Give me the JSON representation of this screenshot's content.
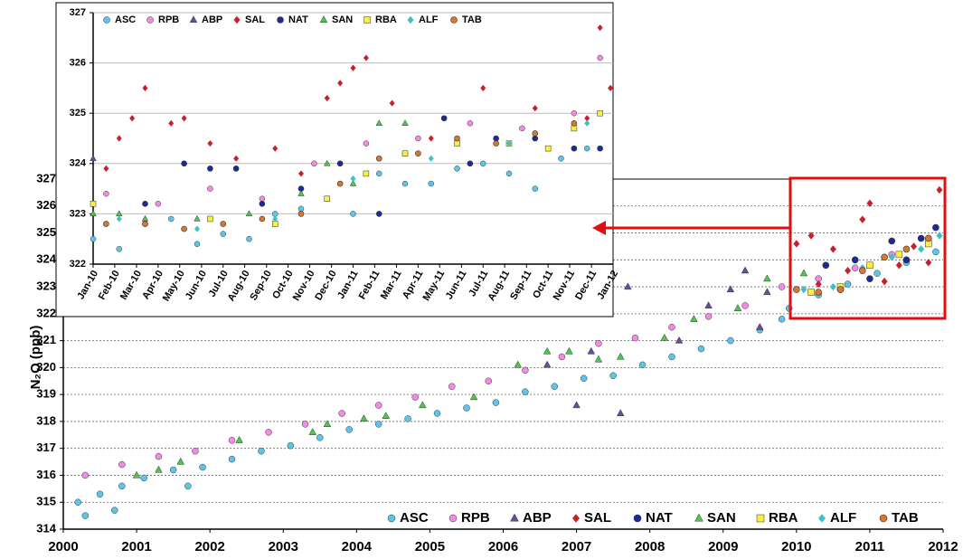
{
  "chart_data": [
    {
      "type": "scatter",
      "y_label": "N₂O (ppb)",
      "legend": "lower right",
      "grid": true,
      "xlim": [
        2000,
        2012
      ],
      "xticks": [
        2000,
        2001,
        2002,
        2003,
        2004,
        2005,
        2006,
        2007,
        2008,
        2009,
        2010,
        2011,
        2012
      ],
      "ylim": [
        314,
        327
      ],
      "yticks": [
        314,
        315,
        316,
        317,
        318,
        319,
        320,
        321,
        322,
        323,
        324,
        325,
        326,
        327
      ],
      "series": [
        {
          "name": "ASC",
          "color": "#5cc6e8",
          "marker": "circle",
          "x": [
            2000.2,
            2000.3,
            2000.5,
            2000.7,
            2000.8,
            2001.1,
            2001.5,
            2001.7,
            2001.9,
            2002.3,
            2002.7,
            2003.1,
            2003.5,
            2003.9,
            2004.3,
            2004.7,
            2005.1,
            2005.5,
            2005.9,
            2006.3,
            2006.7,
            2007.1,
            2007.5,
            2007.9,
            2008.3,
            2008.7,
            2009.1,
            2009.5,
            2009.8,
            2009.9,
            2010.3,
            2010.7,
            2011.1,
            2011.5,
            2011.9
          ],
          "values": [
            315.0,
            314.5,
            315.3,
            314.7,
            315.6,
            315.9,
            316.2,
            315.6,
            316.3,
            316.6,
            316.9,
            317.1,
            317.4,
            317.7,
            317.9,
            318.1,
            318.3,
            318.5,
            318.7,
            319.1,
            319.3,
            319.6,
            319.7,
            320.1,
            320.4,
            320.7,
            321.0,
            321.4,
            321.8,
            322.2,
            322.7,
            323.1,
            323.5,
            323.9,
            324.3
          ]
        },
        {
          "name": "RPB",
          "color": "#f28ae6",
          "marker": "circle",
          "x": [
            2000.3,
            2000.8,
            2001.3,
            2001.8,
            2002.3,
            2002.8,
            2003.3,
            2003.8,
            2004.3,
            2004.8,
            2005.3,
            2005.8,
            2006.3,
            2006.8,
            2007.3,
            2007.8,
            2008.3,
            2008.8,
            2009.3,
            2009.8,
            2010.3,
            2010.8,
            2011.3,
            2011.8
          ],
          "values": [
            316.0,
            316.4,
            316.7,
            316.9,
            317.3,
            317.6,
            317.9,
            318.3,
            318.6,
            318.9,
            319.3,
            319.5,
            319.9,
            320.4,
            320.9,
            321.1,
            321.5,
            321.9,
            322.3,
            323.0,
            323.3,
            323.7,
            324.2,
            324.8
          ]
        },
        {
          "name": "ABP",
          "color": "#6a4c9c",
          "marker": "triangle",
          "x": [
            2006.6,
            2006.9,
            2007.0,
            2007.2,
            2007.4,
            2007.6,
            2007.7,
            2008.4,
            2008.8,
            2009.1,
            2009.3,
            2009.5,
            2009.6
          ],
          "values": [
            320.1,
            322.5,
            318.6,
            320.6,
            322.2,
            318.3,
            323.0,
            321.0,
            322.3,
            322.9,
            323.6,
            321.5,
            322.8
          ]
        },
        {
          "name": "SAL",
          "color": "#c8202a",
          "marker": "diamond",
          "x": [
            2010.0,
            2010.2,
            2010.3,
            2010.5,
            2010.7,
            2010.9,
            2011.0,
            2011.2,
            2011.4,
            2011.6,
            2011.8,
            2011.95
          ],
          "values": [
            324.6,
            324.9,
            323.1,
            324.4,
            323.6,
            325.5,
            326.1,
            323.2,
            323.8,
            324.5,
            323.9,
            326.6
          ]
        },
        {
          "name": "NAT",
          "color": "#1a2a9a",
          "marker": "circle",
          "x": [
            2010.4,
            2010.6,
            2010.8,
            2011.0,
            2011.3,
            2011.5,
            2011.7,
            2011.9
          ],
          "values": [
            323.8,
            322.9,
            324.0,
            323.3,
            324.7,
            324.0,
            324.8,
            325.2
          ]
        },
        {
          "name": "SAN",
          "color": "#4cc84c",
          "marker": "triangle",
          "x": [
            2001.0,
            2001.3,
            2001.6,
            2002.4,
            2003.4,
            2003.6,
            2004.1,
            2004.4,
            2004.9,
            2005.6,
            2006.2,
            2006.6,
            2006.9,
            2007.3,
            2007.6,
            2008.2,
            2008.6,
            2009.2,
            2009.6,
            2010.1
          ],
          "values": [
            316.0,
            316.2,
            316.5,
            317.3,
            317.6,
            317.9,
            318.1,
            318.2,
            318.6,
            318.9,
            320.1,
            320.6,
            320.6,
            320.3,
            320.4,
            321.1,
            321.8,
            322.2,
            323.3,
            323.5
          ]
        },
        {
          "name": "RBA",
          "color": "#f8f040",
          "marker": "square",
          "x": [
            2010.2,
            2010.6,
            2011.0,
            2011.4,
            2011.8
          ],
          "values": [
            322.8,
            323.0,
            323.8,
            324.2,
            324.6
          ]
        },
        {
          "name": "ALF",
          "color": "#40c0c0",
          "marker": "diamond",
          "x": [
            2010.1,
            2010.5,
            2010.9,
            2011.3,
            2011.7,
            2011.95
          ],
          "values": [
            322.9,
            323.0,
            323.7,
            324.1,
            324.4,
            324.9
          ]
        },
        {
          "name": "TAB",
          "color": "#d87830",
          "marker": "circle",
          "x": [
            2010.0,
            2010.3,
            2010.6,
            2010.9,
            2011.2,
            2011.5,
            2011.8
          ],
          "values": [
            322.9,
            322.8,
            322.9,
            323.6,
            324.1,
            324.4,
            324.8
          ]
        }
      ]
    },
    {
      "type": "scatter",
      "legend": "upper left",
      "grid": true,
      "xlim": [
        2010,
        2012
      ],
      "xticks": [
        {
          "value": 2010.0,
          "label": "Jan-10"
        },
        {
          "value": 2010.083,
          "label": "Feb-10"
        },
        {
          "value": 2010.167,
          "label": "Mar-10"
        },
        {
          "value": 2010.25,
          "label": "Apr-10"
        },
        {
          "value": 2010.333,
          "label": "May-10"
        },
        {
          "value": 2010.417,
          "label": "Jun-10"
        },
        {
          "value": 2010.5,
          "label": "Jul-10"
        },
        {
          "value": 2010.583,
          "label": "Aug-10"
        },
        {
          "value": 2010.667,
          "label": "Sep-10"
        },
        {
          "value": 2010.75,
          "label": "Oct-10"
        },
        {
          "value": 2010.833,
          "label": "Nov-10"
        },
        {
          "value": 2010.917,
          "label": "Dec-10"
        },
        {
          "value": 2011.0,
          "label": "Jan-11"
        },
        {
          "value": 2011.083,
          "label": "Feb-11"
        },
        {
          "value": 2011.167,
          "label": "Mar-11"
        },
        {
          "value": 2011.25,
          "label": "Apr-11"
        },
        {
          "value": 2011.333,
          "label": "May-11"
        },
        {
          "value": 2011.417,
          "label": "Jun-11"
        },
        {
          "value": 2011.5,
          "label": "Jul-11"
        },
        {
          "value": 2011.583,
          "label": "Aug-11"
        },
        {
          "value": 2011.667,
          "label": "Sep-11"
        },
        {
          "value": 2011.75,
          "label": "Oct-11"
        },
        {
          "value": 2011.833,
          "label": "Nov-11"
        },
        {
          "value": 2011.917,
          "label": "Dec-11"
        },
        {
          "value": 2012.0,
          "label": "Jan-12"
        }
      ],
      "ylim": [
        322,
        327
      ],
      "yticks": [
        322,
        323,
        324,
        325,
        326,
        327
      ],
      "series": [
        {
          "name": "ASC",
          "color": "#5cc6e8",
          "marker": "circle",
          "x": [
            2010.0,
            2010.1,
            2010.2,
            2010.3,
            2010.4,
            2010.5,
            2010.6,
            2010.7,
            2010.8,
            2010.9,
            2011.0,
            2011.1,
            2011.2,
            2011.3,
            2011.4,
            2011.5,
            2011.6,
            2011.7,
            2011.8,
            2011.9
          ],
          "values": [
            322.5,
            322.3,
            322.8,
            322.9,
            322.4,
            322.6,
            322.5,
            323.0,
            323.1,
            323.3,
            323.0,
            323.8,
            323.6,
            323.6,
            323.9,
            324.0,
            323.8,
            323.5,
            324.1,
            324.3
          ]
        },
        {
          "name": "RPB",
          "color": "#f28ae6",
          "marker": "circle",
          "x": [
            2010.05,
            2010.25,
            2010.45,
            2010.65,
            2010.85,
            2011.05,
            2011.25,
            2011.45,
            2011.65,
            2011.85,
            2011.95
          ],
          "values": [
            323.4,
            323.2,
            323.5,
            323.3,
            324.0,
            324.4,
            324.5,
            324.8,
            324.7,
            325.0,
            326.1
          ]
        },
        {
          "name": "ABP",
          "color": "#6a4c9c",
          "marker": "triangle",
          "x": [
            2010.0
          ],
          "values": [
            324.1
          ]
        },
        {
          "name": "SAL",
          "color": "#c8202a",
          "marker": "diamond",
          "x": [
            2010.05,
            2010.1,
            2010.15,
            2010.2,
            2010.3,
            2010.35,
            2010.45,
            2010.55,
            2010.7,
            2010.8,
            2010.9,
            2010.95,
            2011.0,
            2011.05,
            2011.15,
            2011.3,
            2011.5,
            2011.7,
            2011.9,
            2011.95,
            2011.99
          ],
          "values": [
            323.9,
            324.5,
            324.9,
            325.5,
            324.8,
            324.9,
            324.4,
            324.1,
            324.3,
            323.8,
            325.3,
            325.6,
            325.9,
            326.1,
            325.2,
            324.5,
            325.5,
            325.1,
            324.9,
            326.7,
            325.5
          ]
        },
        {
          "name": "NAT",
          "color": "#1a2a9a",
          "marker": "circle",
          "x": [
            2010.2,
            2010.35,
            2010.45,
            2010.55,
            2010.65,
            2010.8,
            2010.95,
            2011.1,
            2011.2,
            2011.35,
            2011.45,
            2011.55,
            2011.7,
            2011.85,
            2011.95
          ],
          "values": [
            323.2,
            324.0,
            323.9,
            323.9,
            323.2,
            323.5,
            324.0,
            323.0,
            324.2,
            324.9,
            324.0,
            324.5,
            324.5,
            324.3,
            324.3
          ]
        },
        {
          "name": "SAN",
          "color": "#4cc84c",
          "marker": "triangle",
          "x": [
            2010.0,
            2010.1,
            2010.2,
            2010.4,
            2010.6,
            2010.8,
            2010.9,
            2011.0,
            2011.1,
            2011.2
          ],
          "values": [
            323.0,
            323.0,
            322.9,
            322.9,
            323.0,
            323.4,
            324.0,
            323.6,
            324.8,
            324.8
          ]
        },
        {
          "name": "RBA",
          "color": "#f8f040",
          "marker": "square",
          "x": [
            2010.0,
            2010.45,
            2010.7,
            2010.9,
            2011.05,
            2011.2,
            2011.4,
            2011.6,
            2011.75,
            2011.85,
            2011.95
          ],
          "values": [
            323.2,
            322.9,
            322.8,
            323.3,
            323.8,
            324.2,
            324.4,
            324.4,
            324.3,
            324.7,
            325.0
          ]
        },
        {
          "name": "ALF",
          "color": "#40c0c0",
          "marker": "diamond",
          "x": [
            2010.1,
            2010.4,
            2010.7,
            2011.0,
            2011.3,
            2011.6,
            2011.9
          ],
          "values": [
            322.9,
            322.7,
            322.9,
            323.7,
            324.1,
            324.4,
            324.8
          ]
        },
        {
          "name": "TAB",
          "color": "#d87830",
          "marker": "circle",
          "x": [
            2010.05,
            2010.2,
            2010.35,
            2010.5,
            2010.65,
            2010.8,
            2010.95,
            2011.1,
            2011.25,
            2011.4,
            2011.55,
            2011.7,
            2011.85
          ],
          "values": [
            322.8,
            322.8,
            322.7,
            322.8,
            322.9,
            323.0,
            323.6,
            324.1,
            324.2,
            324.5,
            324.4,
            324.6,
            324.8
          ]
        }
      ]
    }
  ]
}
